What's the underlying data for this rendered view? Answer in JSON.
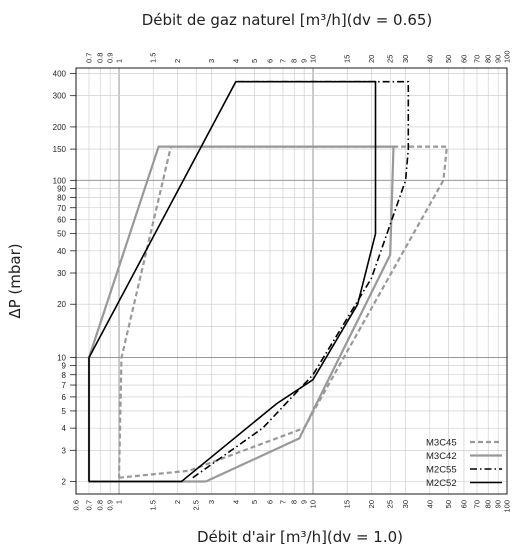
{
  "chart_data": {
    "type": "line",
    "title": "Débit de gaz naturel [m³/h](dv = 0.65)",
    "xlabel": "Débit d'air [m³/h](dv = 1.0)",
    "ylabel": "ΔP (mbar)",
    "x_scale": "log",
    "y_scale": "log",
    "xlim_bottom": [
      0.6,
      100
    ],
    "xlim_top": [
      0.6,
      100
    ],
    "ylim": [
      1.7,
      430
    ],
    "grid": true,
    "legend_position": "bottom-right",
    "y_ticks": [
      2,
      3,
      4,
      5,
      6,
      7,
      8,
      9,
      10,
      20,
      30,
      40,
      50,
      60,
      70,
      80,
      90,
      100,
      150,
      200,
      300,
      400
    ],
    "x_ticks_bottom": [
      "0.6",
      "0.7",
      "0.8",
      "0.9",
      "1",
      "1.5",
      "2",
      "2.5",
      "3",
      "4",
      "5",
      "6",
      "7",
      "8",
      "9",
      "10",
      "15",
      "20",
      "25",
      "30",
      "40",
      "50",
      "60",
      "70",
      "80",
      "90",
      "100"
    ],
    "x_ticks_top": [
      "0.7",
      "0.8",
      "0.9",
      "1",
      "1.5",
      "2",
      "3",
      "4",
      "5",
      "6",
      "7",
      "8",
      "9",
      "10",
      "15",
      "20",
      "25",
      "30",
      "40",
      "50",
      "60",
      "70",
      "80",
      "90",
      "100"
    ],
    "series": [
      {
        "name": "M3C45",
        "color": "#999999",
        "dash": "dashed",
        "points": [
          [
            1.0,
            2.1
          ],
          [
            2.3,
            2.3
          ],
          [
            9.0,
            4.0
          ],
          [
            47,
            100
          ],
          [
            49,
            155
          ],
          [
            1.85,
            155
          ],
          [
            1.03,
            10
          ],
          [
            1.0,
            2.1
          ]
        ]
      },
      {
        "name": "M3C42",
        "color": "#999999",
        "dash": "solid",
        "points": [
          [
            2.8,
            2.0
          ],
          [
            8.5,
            3.5
          ],
          [
            25,
            38
          ],
          [
            26,
            155
          ],
          [
            1.6,
            155
          ],
          [
            0.7,
            10
          ],
          [
            0.7,
            2.0
          ],
          [
            2.8,
            2.0
          ]
        ]
      },
      {
        "name": "M2C55",
        "color": "#000000",
        "dash": "dashdot",
        "points": [
          [
            2.4,
            2.1
          ],
          [
            5.5,
            4.0
          ],
          [
            10,
            8.0
          ],
          [
            20,
            28
          ],
          [
            30,
            100
          ],
          [
            31,
            150
          ],
          [
            31,
            360
          ],
          [
            4.0,
            360
          ]
        ]
      },
      {
        "name": "M2C52",
        "color": "#000000",
        "dash": "solid",
        "points": [
          [
            0.7,
            2.0
          ],
          [
            2.1,
            2.0
          ],
          [
            6.5,
            5.5
          ],
          [
            10,
            7.5
          ],
          [
            17,
            20
          ],
          [
            21,
            50
          ],
          [
            21,
            360
          ],
          [
            4.0,
            360
          ],
          [
            0.7,
            10
          ],
          [
            0.7,
            2.0
          ]
        ]
      }
    ]
  }
}
